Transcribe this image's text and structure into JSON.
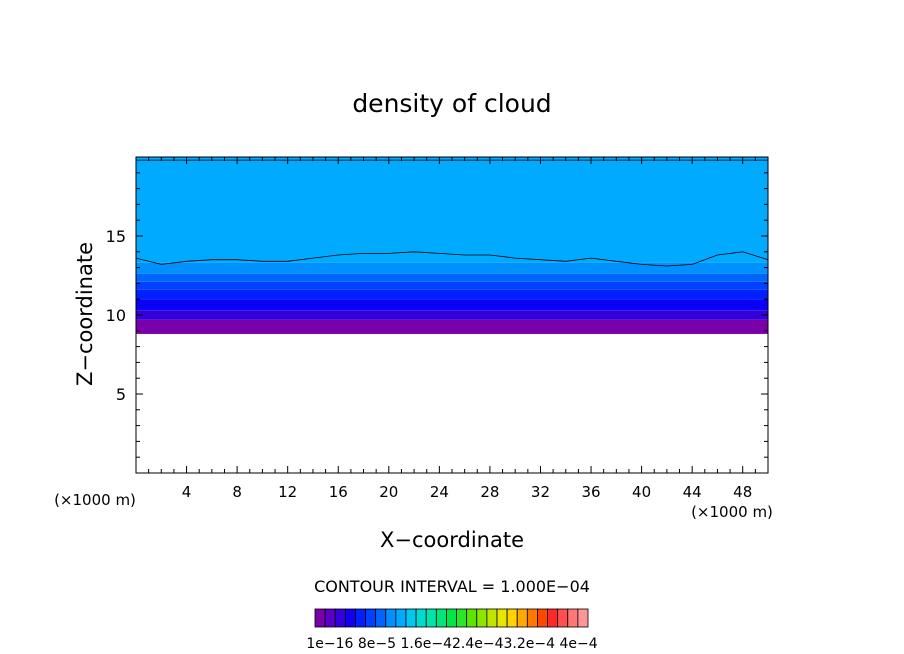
{
  "chart_data": {
    "type": "heatmap",
    "title": "density of cloud",
    "xlabel": "X−coordinate",
    "ylabel": "Z−coordinate",
    "x_unit_left": "(×1000 m)",
    "x_unit_right": "(×1000 m)",
    "xlim": [
      0,
      50
    ],
    "ylim": [
      0,
      20
    ],
    "xticks": [
      4,
      8,
      12,
      16,
      20,
      24,
      28,
      32,
      36,
      40,
      44,
      48
    ],
    "xtick_labels": [
      "4",
      "8",
      "12",
      "16",
      "20",
      "24",
      "28",
      "32",
      "36",
      "40",
      "44",
      "48"
    ],
    "yticks": [
      5,
      10,
      15
    ],
    "ytick_labels": [
      "5",
      "10",
      "15"
    ],
    "contour_interval_text": "CONTOUR INTERVAL = 1.000E−04",
    "colorbar": {
      "labels": [
        "1e−16",
        "8e−5",
        "1.6e−4",
        "2.4e−4",
        "3.2e−4",
        "4e−4"
      ],
      "label_text": "1e−16  8e−5  1.6e−42.4e−43.2e−4  4e−4",
      "colors": [
        "#7a00aa",
        "#5a00c8",
        "#3400dc",
        "#1400f0",
        "#0020ff",
        "#0040ff",
        "#0064ff",
        "#0090ff",
        "#00aaff",
        "#00c8f0",
        "#00dcd2",
        "#00e6aa",
        "#00e678",
        "#00e646",
        "#28e628",
        "#5ae600",
        "#8ce600",
        "#bee600",
        "#e6e600",
        "#ffd200",
        "#ffaa00",
        "#ff7800",
        "#ff4600",
        "#ff2828",
        "#ff5050",
        "#ff7878",
        "#ff9696"
      ]
    },
    "field_bands": [
      {
        "z_bottom": 8.8,
        "z_top": 9.7,
        "color": "#7a00aa"
      },
      {
        "z_bottom": 9.7,
        "z_top": 10.3,
        "color": "#3400dc"
      },
      {
        "z_bottom": 10.3,
        "z_top": 11.0,
        "color": "#0a00f5"
      },
      {
        "z_bottom": 11.0,
        "z_top": 11.6,
        "color": "#0020ff"
      },
      {
        "z_bottom": 11.6,
        "z_top": 12.1,
        "color": "#0040ff"
      },
      {
        "z_bottom": 12.1,
        "z_top": 12.6,
        "color": "#0064ff"
      },
      {
        "z_bottom": 12.6,
        "z_top": 13.3,
        "color": "#0090ff"
      },
      {
        "z_bottom": 13.3,
        "z_top": 20.0,
        "color": "#00aaff"
      }
    ],
    "contour_line_z": [
      [
        0,
        13.6
      ],
      [
        2,
        13.2
      ],
      [
        4,
        13.4
      ],
      [
        6,
        13.5
      ],
      [
        8,
        13.5
      ],
      [
        10,
        13.4
      ],
      [
        12,
        13.4
      ],
      [
        14,
        13.6
      ],
      [
        16,
        13.8
      ],
      [
        18,
        13.9
      ],
      [
        20,
        13.9
      ],
      [
        22,
        14.0
      ],
      [
        24,
        13.9
      ],
      [
        26,
        13.8
      ],
      [
        28,
        13.8
      ],
      [
        30,
        13.6
      ],
      [
        32,
        13.5
      ],
      [
        34,
        13.4
      ],
      [
        36,
        13.6
      ],
      [
        38,
        13.4
      ],
      [
        40,
        13.2
      ],
      [
        42,
        13.1
      ],
      [
        44,
        13.2
      ],
      [
        46,
        13.8
      ],
      [
        48,
        14.0
      ],
      [
        50,
        13.5
      ]
    ],
    "top_contour_z": 19.8
  }
}
